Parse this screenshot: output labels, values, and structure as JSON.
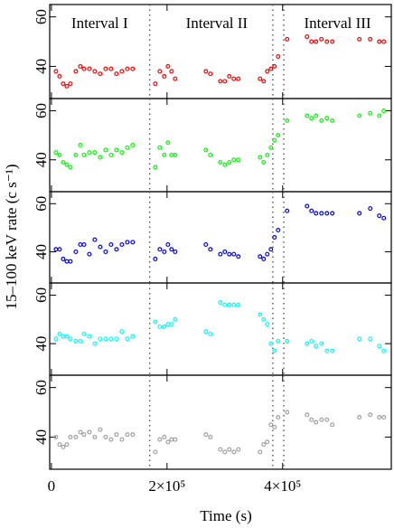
{
  "chart_data": {
    "type": "scatter",
    "xlabel": "Time (s)",
    "ylabel": "15–100 keV rate (c s⁻¹)",
    "annotations": [
      "Interval I",
      "Interval II",
      "Interval III"
    ],
    "dividers": [
      170000,
      383000,
      402000
    ],
    "xlim": [
      -3000,
      588000
    ],
    "xticks": [
      0,
      {
        "value": 200000,
        "label": "2×10⁵"
      },
      {
        "value": 400000,
        "label": "4×10⁵"
      }
    ],
    "ylim": [
      27,
      65
    ],
    "yticks": [
      40,
      60
    ],
    "x": [
      7800,
      14100,
      20300,
      26600,
      32800,
      42200,
      50000,
      56300,
      65600,
      75000,
      84400,
      93800,
      103100,
      112500,
      121900,
      131300,
      140600,
      179700,
      187500,
      195300,
      201600,
      207800,
      214100,
      267200,
      275000,
      292200,
      300000,
      307800,
      315600,
      323400,
      360900,
      367200,
      373400,
      379700,
      385900,
      392200,
      407800,
      442200,
      450000,
      457800,
      467200,
      476600,
      485900,
      532800,
      551600,
      567200,
      575000
    ],
    "series": [
      {
        "color": "#ff0000",
        "values": [
          38,
          36,
          33,
          32,
          33,
          38,
          40,
          39,
          39,
          38,
          37,
          39,
          39,
          37,
          38,
          39,
          39,
          33,
          38,
          36,
          40,
          38,
          35,
          38,
          37,
          34,
          34,
          36,
          35,
          35,
          35,
          34,
          38,
          39,
          40,
          44,
          51,
          52,
          50,
          50,
          51,
          50,
          50,
          51,
          51,
          50,
          50
        ]
      },
      {
        "color": "#00ff00",
        "values": [
          43,
          42,
          39,
          38,
          37,
          42,
          46,
          42,
          43,
          43,
          41,
          44,
          42,
          44,
          43,
          45,
          46,
          37,
          45,
          42,
          47,
          42,
          42,
          44,
          42,
          39,
          38,
          39,
          40,
          40,
          41,
          39,
          42,
          45,
          48,
          50,
          56,
          58,
          57,
          58,
          56,
          57,
          56,
          58,
          59,
          58,
          60
        ]
      },
      {
        "color": "#0000ff",
        "values": [
          41,
          41,
          37,
          36,
          36,
          40,
          43,
          43,
          39,
          45,
          42,
          40,
          43,
          41,
          43,
          44,
          44,
          37,
          41,
          40,
          43,
          41,
          40,
          43,
          41,
          39,
          40,
          39,
          39,
          38,
          38,
          37,
          39,
          41,
          46,
          49,
          57,
          59,
          57,
          56,
          56,
          56,
          56,
          56,
          58,
          55,
          54
        ]
      },
      {
        "color": "#00ffff",
        "values": [
          42,
          44,
          43,
          43,
          42,
          41,
          41,
          44,
          43,
          40,
          42,
          42,
          42,
          42,
          45,
          42,
          43,
          49,
          47,
          47,
          48,
          48,
          50,
          45,
          44,
          57,
          56,
          56,
          56,
          56,
          52,
          50,
          48,
          40,
          37,
          41,
          41,
          40,
          41,
          39,
          40,
          37,
          37,
          42,
          42,
          39,
          37
        ]
      },
      {
        "color": "#a0a0a0",
        "values": [
          40,
          37,
          36,
          37,
          40,
          40,
          42,
          41,
          42,
          40,
          43,
          40,
          39,
          41,
          39,
          41,
          41,
          34,
          39,
          40,
          38,
          39,
          39,
          41,
          40,
          35,
          34,
          35,
          34,
          35,
          34,
          37,
          38,
          45,
          44,
          48,
          50,
          49,
          47,
          46,
          47,
          47,
          45,
          48,
          49,
          48,
          48
        ]
      }
    ]
  }
}
